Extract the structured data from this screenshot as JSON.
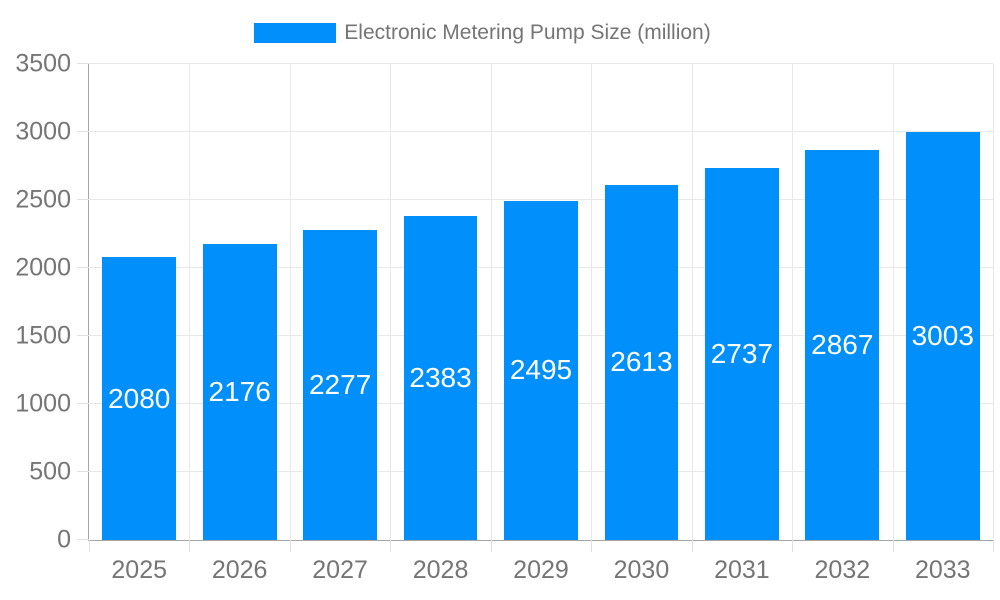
{
  "chart_data": {
    "type": "bar",
    "title": "Electronic Metering Pump Size (million)",
    "categories": [
      "2025",
      "2026",
      "2027",
      "2028",
      "2029",
      "2030",
      "2031",
      "2032",
      "2033"
    ],
    "values": [
      2080,
      2176,
      2277,
      2383,
      2495,
      2613,
      2737,
      2867,
      3003
    ],
    "series": [
      {
        "name": "Electronic Metering Pump Size (million)",
        "values": [
          2080,
          2176,
          2277,
          2383,
          2495,
          2613,
          2737,
          2867,
          3003
        ]
      }
    ],
    "xlabel": "",
    "ylabel": "",
    "ylim": [
      0,
      3500
    ],
    "ytick_step": 500,
    "ytick_labels": [
      "0",
      "500",
      "1000",
      "1500",
      "2000",
      "2500",
      "3000",
      "3500"
    ],
    "grid": "both",
    "legend_position": "top",
    "value_labels": "inside-center",
    "colors": {
      "bar": "#008FFB",
      "grid": "#e8e8e8",
      "axis": "#a5a5a5",
      "tick": "#e0e0e0",
      "axis_label": "#757575",
      "value_label": "#ffffff",
      "background": "#ffffff"
    }
  }
}
